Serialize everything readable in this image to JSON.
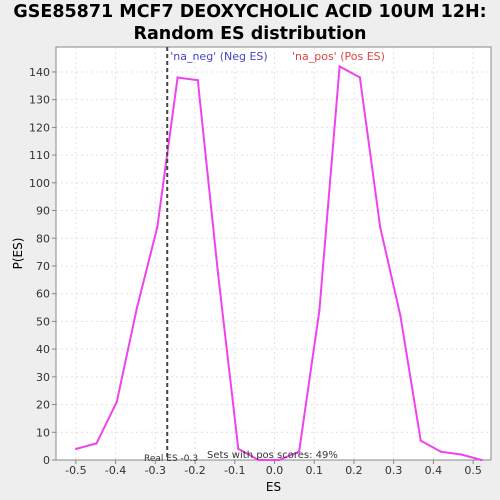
{
  "chart_data": {
    "type": "line",
    "title": [
      "GSE85871 MCF7 DEOXYCHOLIC ACID 10UM 12H:",
      "Random ES distribution"
    ],
    "xlabel": "ES",
    "ylabel": "P(ES)",
    "xlim": [
      -0.55,
      0.545
    ],
    "ylim": [
      0,
      149
    ],
    "xticks": [
      -0.5,
      -0.4,
      -0.3,
      -0.2,
      -0.1,
      0.0,
      0.1,
      0.2,
      0.3,
      0.4,
      0.5
    ],
    "xtick_labels": [
      "-0.5",
      "-0.4",
      "-0.3",
      "-0.2",
      "-0.1",
      "0.0",
      "0.1",
      "0.2",
      "0.3",
      "0.4",
      "0.5"
    ],
    "yticks": [
      0,
      10,
      20,
      30,
      40,
      50,
      60,
      70,
      80,
      90,
      100,
      110,
      120,
      130,
      140
    ],
    "ytick_labels": [
      "0",
      "10",
      "20",
      "30",
      "40",
      "50",
      "60",
      "70",
      "80",
      "90",
      "100",
      "110",
      "120",
      "130",
      "140"
    ],
    "grid": true,
    "series": [
      {
        "color": "#ee44ee",
        "x": [
          -0.499,
          -0.448,
          -0.397,
          -0.346,
          -0.295,
          -0.244,
          -0.193,
          -0.142,
          -0.091,
          -0.04,
          0.011,
          0.062,
          0.113,
          0.164,
          0.215,
          0.266,
          0.317,
          0.368,
          0.419,
          0.47,
          0.521
        ],
        "y": [
          4,
          6,
          21,
          55,
          84,
          138,
          137,
          67,
          4,
          0,
          0,
          3,
          54,
          142,
          138,
          84,
          52,
          7,
          3,
          2,
          0
        ]
      }
    ],
    "real_es": -0.27,
    "annotations": {
      "neg_label": "'na_neg' (Neg ES)",
      "pos_label": "'na_pos' (Pos ES)",
      "real_es_label": "Real ES -0.3",
      "sets_label": "Sets with pos scores: 49%"
    },
    "colors": {
      "line": "#ee44ee",
      "neg_label": "#4444cc",
      "pos_label": "#dd4444",
      "real_es_line": "#444444",
      "grid": "#e0e0e0",
      "plot_bg": "#ffffff",
      "page_bg": "#eeeeee"
    }
  }
}
